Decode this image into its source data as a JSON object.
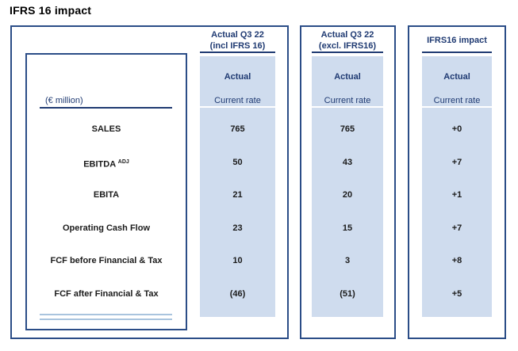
{
  "page_title": "IFRS 16 impact",
  "colors": {
    "navy_text": "#1f3a72",
    "box_border": "#2b4d87",
    "band_fill": "#cfdcee",
    "total_double_underline": "#a9c4de",
    "body_text": "#1b1b1b"
  },
  "table": {
    "unit_label": "(€ million)",
    "rows": [
      {
        "label": "SALES"
      },
      {
        "label": "EBITDA",
        "sup": "ADJ"
      },
      {
        "label": "EBITA"
      },
      {
        "label": "Operating Cash Flow"
      },
      {
        "label": "FCF before Financial & Tax"
      },
      {
        "label": "FCF after Financial & Tax"
      }
    ],
    "columns": [
      {
        "header_line1": "Actual Q3 22",
        "header_line2": "(incl IFRS 16)",
        "sub_header": "Actual",
        "rate_label": "Current rate",
        "values": [
          "765",
          "50",
          "21",
          "23",
          "10",
          "(46)"
        ]
      },
      {
        "header_line1": "Actual Q3 22",
        "header_line2": "(excl. IFRS16)",
        "sub_header": "Actual",
        "rate_label": "Current rate",
        "values": [
          "765",
          "43",
          "20",
          "15",
          "3",
          "(51)"
        ]
      },
      {
        "header_line1": "IFRS16 impact",
        "sub_header": "Actual",
        "rate_label": "Current rate",
        "values": [
          "+0",
          "+7",
          "+1",
          "+7",
          "+8",
          "+5"
        ]
      }
    ]
  }
}
